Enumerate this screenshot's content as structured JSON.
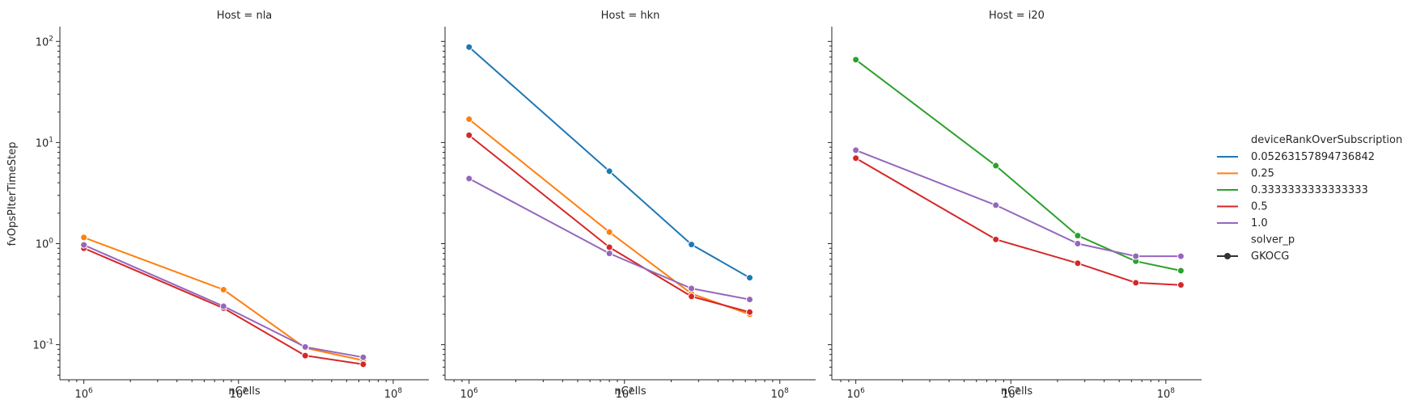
{
  "chart_data": {
    "type": "line",
    "scale": {
      "x": "log",
      "y": "log"
    },
    "shared_y": true,
    "xlim": [
      700000,
      170000000
    ],
    "ylim": [
      0.045,
      140
    ],
    "xticks": [
      {
        "value": 1000000,
        "label": "10^6"
      },
      {
        "value": 10000000,
        "label": "10^7"
      },
      {
        "value": 100000000,
        "label": "10^8"
      }
    ],
    "yticks": [
      {
        "value": 0.1,
        "label": "10^-1"
      },
      {
        "value": 1,
        "label": "10^0"
      },
      {
        "value": 10,
        "label": "10^1"
      },
      {
        "value": 100,
        "label": "10^2"
      }
    ],
    "xlabel": "nCells",
    "ylabel": "fvOpsPIterTimeStep",
    "grid": false,
    "legend": {
      "placement": "right",
      "hue_title": "deviceRankOverSubscription",
      "hue_entries": [
        {
          "name": "0.05263157894736842",
          "color": "#1f77b4"
        },
        {
          "name": "0.25",
          "color": "#ff7f0e"
        },
        {
          "name": "0.3333333333333333",
          "color": "#2ca02c"
        },
        {
          "name": "0.5",
          "color": "#d62728"
        },
        {
          "name": "1.0",
          "color": "#9467bd"
        }
      ],
      "style_title": "solver_p",
      "style_entries": [
        {
          "name": "GKOCG",
          "marker": "circle"
        }
      ]
    },
    "panels": [
      {
        "title": "Host = nla",
        "series": [
          {
            "name": "0.25",
            "color": "#ff7f0e",
            "x": [
              1000000,
              8000000,
              27000000,
              64000000
            ],
            "y": [
              1.15,
              0.35,
              0.093,
              0.07
            ]
          },
          {
            "name": "0.5",
            "color": "#d62728",
            "x": [
              1000000,
              8000000,
              27000000,
              64000000
            ],
            "y": [
              0.9,
              0.23,
              0.078,
              0.064
            ]
          },
          {
            "name": "1.0",
            "color": "#9467bd",
            "x": [
              1000000,
              8000000,
              27000000,
              64000000
            ],
            "y": [
              0.97,
              0.24,
              0.095,
              0.075
            ]
          }
        ]
      },
      {
        "title": "Host = hkn",
        "series": [
          {
            "name": "0.05263157894736842",
            "color": "#1f77b4",
            "x": [
              1000000,
              8000000,
              27000000,
              64000000
            ],
            "y": [
              88,
              5.2,
              0.98,
              0.46
            ]
          },
          {
            "name": "0.25",
            "color": "#ff7f0e",
            "x": [
              1000000,
              8000000,
              27000000,
              64000000
            ],
            "y": [
              17,
              1.3,
              0.32,
              0.2
            ]
          },
          {
            "name": "0.5",
            "color": "#d62728",
            "x": [
              1000000,
              8000000,
              27000000,
              64000000
            ],
            "y": [
              11.8,
              0.92,
              0.3,
              0.21
            ]
          },
          {
            "name": "1.0",
            "color": "#9467bd",
            "x": [
              1000000,
              8000000,
              27000000,
              64000000
            ],
            "y": [
              4.4,
              0.8,
              0.36,
              0.28
            ]
          }
        ]
      },
      {
        "title": "Host = i20",
        "series": [
          {
            "name": "0.3333333333333333",
            "color": "#2ca02c",
            "x": [
              1000000,
              8000000,
              27000000,
              64000000,
              125000000
            ],
            "y": [
              66,
              5.9,
              1.2,
              0.67,
              0.54
            ]
          },
          {
            "name": "0.5",
            "color": "#d62728",
            "x": [
              1000000,
              8000000,
              27000000,
              64000000,
              125000000
            ],
            "y": [
              7.0,
              1.1,
              0.64,
              0.41,
              0.39
            ]
          },
          {
            "name": "1.0",
            "color": "#9467bd",
            "x": [
              1000000,
              8000000,
              27000000,
              64000000,
              125000000
            ],
            "y": [
              8.4,
              2.4,
              1.0,
              0.75,
              0.75
            ]
          }
        ]
      }
    ]
  }
}
